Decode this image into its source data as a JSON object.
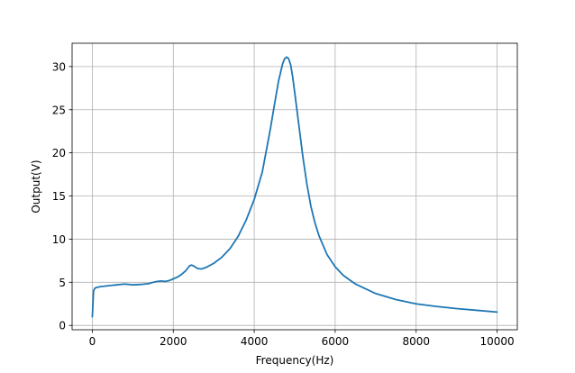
{
  "chart_data": {
    "type": "line",
    "xlabel": "Frequency(Hz)",
    "ylabel": "Output(V)",
    "xlim": [
      -500,
      10500
    ],
    "ylim": [
      -0.5,
      32.7
    ],
    "x_ticks": [
      0,
      2000,
      4000,
      6000,
      8000,
      10000
    ],
    "x_tick_labels": [
      "0",
      "2000",
      "4000",
      "6000",
      "8000",
      "10000"
    ],
    "y_ticks": [
      0,
      5,
      10,
      15,
      20,
      25,
      30
    ],
    "y_tick_labels": [
      "0",
      "5",
      "10",
      "15",
      "20",
      "25",
      "30"
    ],
    "grid": true,
    "series": [
      {
        "color": "#1f77b4",
        "x": [
          0,
          30,
          60,
          100,
          200,
          400,
          600,
          800,
          1000,
          1200,
          1400,
          1500,
          1600,
          1700,
          1800,
          1900,
          2000,
          2100,
          2200,
          2300,
          2400,
          2450,
          2500,
          2600,
          2700,
          2800,
          3000,
          3200,
          3400,
          3600,
          3800,
          4000,
          4200,
          4400,
          4500,
          4600,
          4700,
          4750,
          4800,
          4850,
          4900,
          4950,
          5000,
          5100,
          5200,
          5300,
          5400,
          5500,
          5600,
          5800,
          6000,
          6200,
          6500,
          7000,
          7500,
          8000,
          8500,
          9000,
          9500,
          10000
        ],
        "y": [
          1.0,
          4.0,
          4.3,
          4.4,
          4.5,
          4.6,
          4.7,
          4.8,
          4.7,
          4.75,
          4.85,
          5.0,
          5.1,
          5.15,
          5.1,
          5.2,
          5.4,
          5.6,
          5.9,
          6.3,
          6.9,
          7.0,
          6.9,
          6.6,
          6.55,
          6.7,
          7.2,
          7.9,
          8.9,
          10.3,
          12.2,
          14.6,
          17.8,
          22.8,
          25.6,
          28.3,
          30.3,
          30.9,
          31.1,
          30.9,
          30.2,
          28.8,
          27.0,
          23.3,
          19.6,
          16.4,
          13.8,
          11.9,
          10.4,
          8.2,
          6.8,
          5.8,
          4.8,
          3.7,
          3.0,
          2.5,
          2.2,
          1.95,
          1.75,
          1.55
        ]
      }
    ]
  }
}
